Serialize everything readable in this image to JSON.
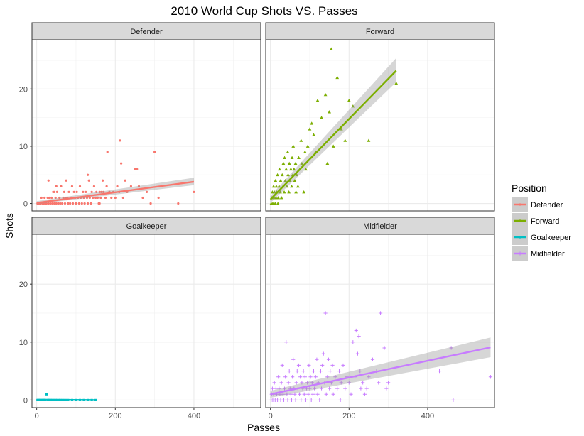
{
  "chart_data": {
    "type": "scatter",
    "title": "2010 World Cup Shots VS. Passes",
    "xlabel": "Passes",
    "ylabel": "Shots",
    "xlim": [
      -12,
      570
    ],
    "ylim": [
      -1.3,
      28.6
    ],
    "x_ticks": [
      0,
      200,
      400
    ],
    "y_ticks": [
      0,
      10,
      20
    ],
    "grid": true,
    "legend": {
      "title": "Position",
      "placement": "right",
      "entries": [
        "Defender",
        "Forward",
        "Goalkeeper",
        "Midfielder"
      ]
    },
    "panels": [
      {
        "name": "Defender",
        "color": "#F8766D",
        "marker": "circle",
        "fit": {
          "x": [
            0,
            400
          ],
          "y": [
            0.1,
            3.8
          ],
          "se_lower": [
            -0.1,
            3.2
          ],
          "se_upper": [
            0.4,
            4.5
          ]
        },
        "points": [
          [
            2,
            0
          ],
          [
            5,
            0
          ],
          [
            8,
            0
          ],
          [
            10,
            0
          ],
          [
            12,
            1
          ],
          [
            15,
            0
          ],
          [
            18,
            0
          ],
          [
            20,
            1
          ],
          [
            22,
            0
          ],
          [
            25,
            0
          ],
          [
            28,
            1
          ],
          [
            30,
            0
          ],
          [
            32,
            1
          ],
          [
            35,
            0
          ],
          [
            38,
            1
          ],
          [
            40,
            0
          ],
          [
            42,
            2
          ],
          [
            45,
            0
          ],
          [
            48,
            1
          ],
          [
            50,
            0
          ],
          [
            52,
            2
          ],
          [
            55,
            0
          ],
          [
            58,
            1
          ],
          [
            60,
            0
          ],
          [
            62,
            3
          ],
          [
            65,
            0
          ],
          [
            68,
            1
          ],
          [
            70,
            2
          ],
          [
            72,
            0
          ],
          [
            75,
            4
          ],
          [
            78,
            1
          ],
          [
            80,
            0
          ],
          [
            82,
            2
          ],
          [
            85,
            0
          ],
          [
            88,
            1
          ],
          [
            90,
            3
          ],
          [
            92,
            0
          ],
          [
            95,
            2
          ],
          [
            98,
            1
          ],
          [
            100,
            0
          ],
          [
            102,
            2
          ],
          [
            105,
            1
          ],
          [
            108,
            0
          ],
          [
            110,
            3
          ],
          [
            112,
            1
          ],
          [
            115,
            0
          ],
          [
            118,
            2
          ],
          [
            120,
            1
          ],
          [
            122,
            0
          ],
          [
            125,
            2
          ],
          [
            128,
            1
          ],
          [
            130,
            0
          ],
          [
            133,
            4
          ],
          [
            135,
            1
          ],
          [
            138,
            0
          ],
          [
            140,
            2
          ],
          [
            143,
            1
          ],
          [
            146,
            3
          ],
          [
            150,
            1
          ],
          [
            152,
            2
          ],
          [
            155,
            1
          ],
          [
            158,
            0
          ],
          [
            160,
            2
          ],
          [
            163,
            1
          ],
          [
            165,
            2
          ],
          [
            168,
            4
          ],
          [
            170,
            2
          ],
          [
            175,
            1
          ],
          [
            178,
            3
          ],
          [
            180,
            9
          ],
          [
            185,
            2
          ],
          [
            190,
            1
          ],
          [
            195,
            2
          ],
          [
            200,
            1
          ],
          [
            205,
            3
          ],
          [
            210,
            2
          ],
          [
            212,
            11
          ],
          [
            215,
            7
          ],
          [
            220,
            1
          ],
          [
            225,
            4
          ],
          [
            230,
            2
          ],
          [
            240,
            3
          ],
          [
            250,
            6
          ],
          [
            255,
            6
          ],
          [
            260,
            3
          ],
          [
            270,
            1
          ],
          [
            280,
            2
          ],
          [
            290,
            0
          ],
          [
            300,
            9
          ],
          [
            310,
            1
          ],
          [
            360,
            0
          ],
          [
            400,
            2
          ],
          [
            30,
            4
          ],
          [
            50,
            3
          ],
          [
            45,
            2
          ],
          [
            130,
            5
          ],
          [
            160,
            0
          ],
          [
            75,
            1
          ]
        ]
      },
      {
        "name": "Forward",
        "color": "#7CAE00",
        "marker": "triangle",
        "fit": {
          "x": [
            0,
            320
          ],
          "y": [
            0.7,
            23.2
          ],
          "se_lower": [
            0.1,
            21.2
          ],
          "se_upper": [
            1.3,
            25.4
          ]
        },
        "points": [
          [
            2,
            0
          ],
          [
            4,
            1
          ],
          [
            5,
            2
          ],
          [
            6,
            0
          ],
          [
            8,
            3
          ],
          [
            9,
            1
          ],
          [
            10,
            2
          ],
          [
            12,
            0
          ],
          [
            13,
            4
          ],
          [
            14,
            1
          ],
          [
            15,
            3
          ],
          [
            16,
            2
          ],
          [
            18,
            5
          ],
          [
            19,
            0
          ],
          [
            20,
            1
          ],
          [
            22,
            3
          ],
          [
            23,
            6
          ],
          [
            25,
            2
          ],
          [
            26,
            4
          ],
          [
            28,
            1
          ],
          [
            30,
            5
          ],
          [
            32,
            3
          ],
          [
            33,
            7
          ],
          [
            35,
            2
          ],
          [
            36,
            8
          ],
          [
            38,
            4
          ],
          [
            40,
            6
          ],
          [
            42,
            3
          ],
          [
            44,
            9
          ],
          [
            45,
            5
          ],
          [
            47,
            2
          ],
          [
            48,
            7
          ],
          [
            50,
            4
          ],
          [
            52,
            6
          ],
          [
            54,
            3
          ],
          [
            55,
            8
          ],
          [
            57,
            5
          ],
          [
            58,
            10
          ],
          [
            60,
            6
          ],
          [
            62,
            4
          ],
          [
            64,
            7
          ],
          [
            65,
            2
          ],
          [
            67,
            5
          ],
          [
            70,
            3
          ],
          [
            72,
            8
          ],
          [
            75,
            6
          ],
          [
            78,
            11
          ],
          [
            80,
            7
          ],
          [
            85,
            2
          ],
          [
            88,
            9
          ],
          [
            90,
            6
          ],
          [
            95,
            10
          ],
          [
            100,
            13
          ],
          [
            105,
            14
          ],
          [
            110,
            12
          ],
          [
            115,
            9
          ],
          [
            120,
            18
          ],
          [
            130,
            15
          ],
          [
            140,
            19
          ],
          [
            145,
            7
          ],
          [
            150,
            16
          ],
          [
            155,
            27
          ],
          [
            160,
            10
          ],
          [
            170,
            22
          ],
          [
            180,
            13
          ],
          [
            190,
            11
          ],
          [
            200,
            18
          ],
          [
            210,
            17
          ],
          [
            250,
            11
          ],
          [
            320,
            21
          ]
        ]
      },
      {
        "name": "Goalkeeper",
        "color": "#00BFC4",
        "marker": "square",
        "fit": {
          "x": [
            0,
            150
          ],
          "y": [
            0.05,
            0.0
          ],
          "se_lower": [
            0.0,
            -0.05
          ],
          "se_upper": [
            0.1,
            0.05
          ]
        },
        "points": [
          [
            2,
            0
          ],
          [
            5,
            0
          ],
          [
            8,
            0
          ],
          [
            12,
            0
          ],
          [
            15,
            0
          ],
          [
            18,
            0
          ],
          [
            20,
            0
          ],
          [
            22,
            0
          ],
          [
            25,
            1
          ],
          [
            28,
            0
          ],
          [
            30,
            0
          ],
          [
            33,
            0
          ],
          [
            36,
            0
          ],
          [
            40,
            0
          ],
          [
            44,
            0
          ],
          [
            48,
            0
          ],
          [
            52,
            0
          ],
          [
            56,
            0
          ],
          [
            60,
            0
          ],
          [
            65,
            0
          ],
          [
            70,
            0
          ],
          [
            75,
            0
          ],
          [
            80,
            0
          ],
          [
            90,
            0
          ],
          [
            100,
            0
          ],
          [
            110,
            0
          ],
          [
            120,
            0
          ],
          [
            130,
            0
          ],
          [
            140,
            0
          ],
          [
            150,
            0
          ]
        ]
      },
      {
        "name": "Midfielder",
        "color": "#C77CFF",
        "marker": "cross",
        "fit": {
          "x": [
            0,
            560
          ],
          "y": [
            1.0,
            9.1
          ],
          "se_lower": [
            0.4,
            7.4
          ],
          "se_upper": [
            1.6,
            10.8
          ]
        },
        "points": [
          [
            2,
            0
          ],
          [
            3,
            1
          ],
          [
            5,
            2
          ],
          [
            6,
            0
          ],
          [
            8,
            1
          ],
          [
            10,
            3
          ],
          [
            12,
            0
          ],
          [
            14,
            2
          ],
          [
            16,
            1
          ],
          [
            18,
            0
          ],
          [
            20,
            4
          ],
          [
            22,
            2
          ],
          [
            24,
            1
          ],
          [
            26,
            0
          ],
          [
            28,
            3
          ],
          [
            30,
            6
          ],
          [
            32,
            1
          ],
          [
            34,
            0
          ],
          [
            36,
            2
          ],
          [
            38,
            4
          ],
          [
            40,
            10
          ],
          [
            42,
            1
          ],
          [
            44,
            0
          ],
          [
            46,
            3
          ],
          [
            48,
            5
          ],
          [
            50,
            2
          ],
          [
            52,
            1
          ],
          [
            54,
            0
          ],
          [
            56,
            4
          ],
          [
            58,
            7
          ],
          [
            60,
            2
          ],
          [
            62,
            1
          ],
          [
            64,
            0
          ],
          [
            66,
            3
          ],
          [
            68,
            5
          ],
          [
            70,
            2
          ],
          [
            72,
            6
          ],
          [
            74,
            1
          ],
          [
            76,
            4
          ],
          [
            78,
            0
          ],
          [
            80,
            3
          ],
          [
            82,
            2
          ],
          [
            84,
            5
          ],
          [
            86,
            1
          ],
          [
            88,
            4
          ],
          [
            90,
            0
          ],
          [
            92,
            2
          ],
          [
            94,
            3
          ],
          [
            96,
            1
          ],
          [
            98,
            6
          ],
          [
            100,
            2
          ],
          [
            102,
            4
          ],
          [
            104,
            0
          ],
          [
            106,
            3
          ],
          [
            108,
            1
          ],
          [
            110,
            5
          ],
          [
            112,
            2
          ],
          [
            115,
            4
          ],
          [
            118,
            7
          ],
          [
            120,
            1
          ],
          [
            122,
            3
          ],
          [
            125,
            0
          ],
          [
            128,
            5
          ],
          [
            130,
            2
          ],
          [
            132,
            6
          ],
          [
            135,
            8
          ],
          [
            138,
            3
          ],
          [
            140,
            15
          ],
          [
            142,
            1
          ],
          [
            145,
            4
          ],
          [
            148,
            7
          ],
          [
            150,
            2
          ],
          [
            152,
            5
          ],
          [
            155,
            3
          ],
          [
            158,
            6
          ],
          [
            160,
            1
          ],
          [
            165,
            4
          ],
          [
            170,
            2
          ],
          [
            175,
            5
          ],
          [
            178,
            0
          ],
          [
            180,
            3
          ],
          [
            185,
            6
          ],
          [
            190,
            2
          ],
          [
            195,
            4
          ],
          [
            200,
            3
          ],
          [
            205,
            1
          ],
          [
            210,
            10
          ],
          [
            215,
            4
          ],
          [
            218,
            12
          ],
          [
            222,
            8
          ],
          [
            225,
            11
          ],
          [
            228,
            5
          ],
          [
            230,
            2
          ],
          [
            235,
            3
          ],
          [
            240,
            1
          ],
          [
            245,
            2
          ],
          [
            250,
            4
          ],
          [
            260,
            7
          ],
          [
            270,
            5
          ],
          [
            275,
            3
          ],
          [
            280,
            15
          ],
          [
            290,
            9
          ],
          [
            295,
            2
          ],
          [
            300,
            3
          ],
          [
            430,
            5
          ],
          [
            460,
            9
          ],
          [
            465,
            0
          ],
          [
            560,
            4
          ]
        ]
      }
    ]
  }
}
